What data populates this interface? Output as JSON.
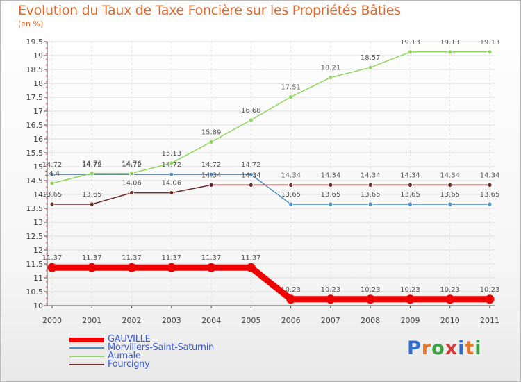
{
  "title": "Evolution du Taux de Taxe Foncière sur les Propriétés Bâties",
  "unit_label": "(en %)",
  "logo_text": "Proxiti",
  "logo_colors": [
    "#2f6fd0",
    "#e8792a",
    "#3aa542",
    "#d83a3a",
    "#2f6fd0",
    "#e8792a",
    "#3aa542"
  ],
  "chart_data": {
    "type": "line",
    "x": [
      "2000",
      "2001",
      "2002",
      "2003",
      "2004",
      "2005",
      "2006",
      "2007",
      "2008",
      "2009",
      "2010",
      "2011"
    ],
    "ylim": [
      10.0,
      19.5
    ],
    "yticks": [
      "10",
      "10.5",
      "11",
      "11.5",
      "12",
      "12.5",
      "13",
      "13.5",
      "14",
      "14.5",
      "15",
      "15.5",
      "16",
      "16.5",
      "17",
      "17.5",
      "18",
      "18.5",
      "19",
      "19.5"
    ],
    "series": [
      {
        "name": "GAUVILLE",
        "color": "#ee0000",
        "values": [
          11.37,
          11.37,
          11.37,
          11.37,
          11.37,
          11.37,
          10.23,
          10.23,
          10.23,
          10.23,
          10.23,
          10.23
        ],
        "labels": [
          "11.37",
          "11.37",
          "11.37",
          "11.37",
          "11.37",
          "11.37",
          "10.23",
          "10.23",
          "10.23",
          "10.23",
          "10.23",
          "10.23"
        ]
      },
      {
        "name": "Morvillers-Saint-Saturnin",
        "color": "#4f8fc8",
        "values": [
          14.72,
          14.72,
          14.72,
          14.72,
          14.72,
          14.72,
          13.65,
          13.65,
          13.65,
          13.65,
          13.65,
          13.65
        ],
        "labels": [
          "14.72",
          "14.72",
          "14.72",
          "14.72",
          "14.72",
          "14.72",
          "13.65",
          "13.65",
          "13.65",
          "13.65",
          "13.65",
          "13.65"
        ]
      },
      {
        "name": "Aumale",
        "color": "#8fd65a",
        "values": [
          14.4,
          14.76,
          14.76,
          15.13,
          15.89,
          16.68,
          17.51,
          18.21,
          18.57,
          19.13,
          19.13,
          19.13
        ],
        "labels": [
          "14.4",
          "14.76",
          "14.76",
          "15.13",
          "15.89",
          "16.68",
          "17.51",
          "18.21",
          "18.57",
          "19.13",
          "19.13",
          "19.13"
        ]
      },
      {
        "name": "Fourcigny",
        "color": "#6e2b2b",
        "values": [
          13.65,
          13.65,
          14.06,
          14.06,
          14.34,
          14.34,
          14.34,
          14.34,
          14.34,
          14.34,
          14.34,
          14.34
        ],
        "labels": [
          "13.65",
          "13.65",
          "14.06",
          "14.06",
          "14.34",
          "14.34",
          "14.34",
          "14.34",
          "14.34",
          "14.34",
          "14.34",
          "14.34"
        ]
      }
    ]
  }
}
